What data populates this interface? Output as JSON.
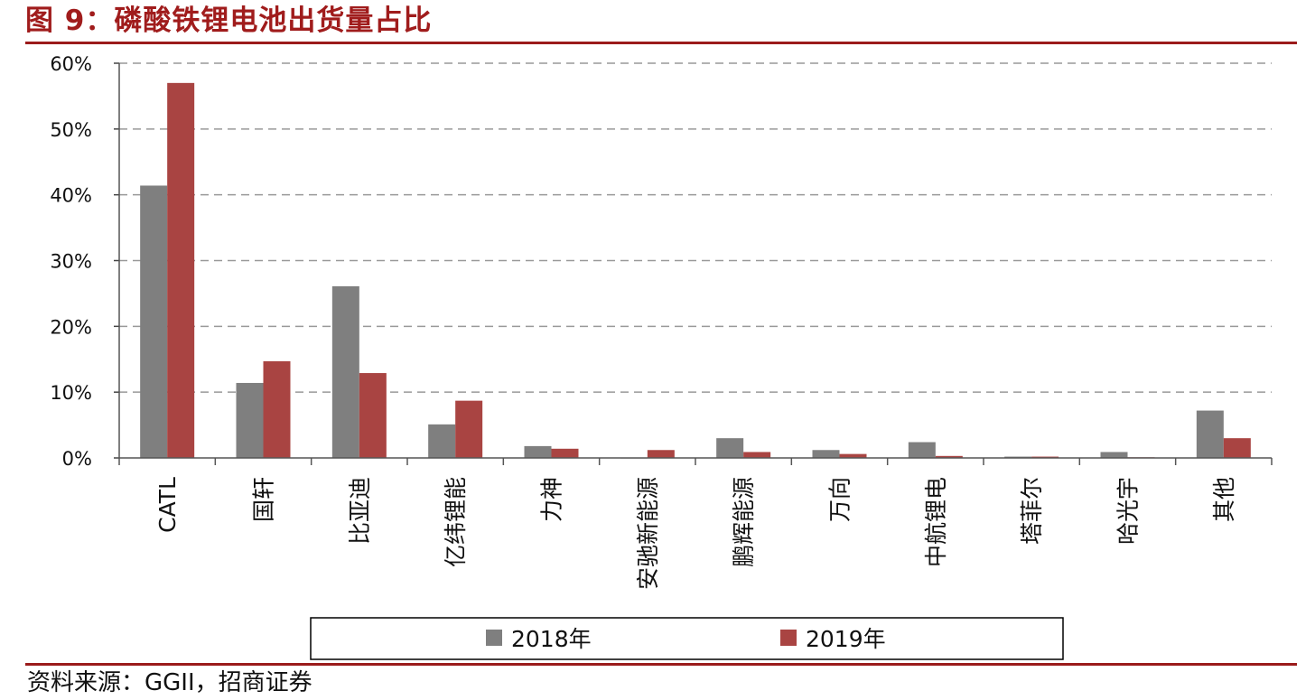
{
  "figure": {
    "title": "图 9：磷酸铁锂电池出货量占比",
    "source": "资料来源：GGII，招商证券"
  },
  "colors": {
    "accent": "#9b1b1b",
    "series_2018": "#7f7f7f",
    "series_2019": "#a94442",
    "grid": "#999999"
  },
  "chart_data": {
    "type": "bar",
    "title": "",
    "xlabel": "",
    "ylabel": "",
    "ylim": [
      0,
      60
    ],
    "yticks": [
      "0%",
      "10%",
      "20%",
      "30%",
      "40%",
      "50%",
      "60%"
    ],
    "grid": true,
    "legend_position": "bottom",
    "categories": [
      "CATL",
      "国轩",
      "比亚迪",
      "亿纬锂能",
      "力神",
      "安驰新能源",
      "鹏辉能源",
      "万向",
      "中航锂电",
      "塔菲尔",
      "哈光宇",
      "其他"
    ],
    "series": [
      {
        "name": "2018年",
        "values": [
          41.4,
          11.4,
          26.1,
          5.1,
          1.8,
          0.0,
          3.0,
          1.2,
          2.4,
          0.2,
          0.9,
          7.2
        ]
      },
      {
        "name": "2019年",
        "values": [
          57.0,
          14.7,
          12.9,
          8.7,
          1.4,
          1.2,
          0.9,
          0.6,
          0.3,
          0.2,
          0.1,
          3.0
        ]
      }
    ]
  }
}
